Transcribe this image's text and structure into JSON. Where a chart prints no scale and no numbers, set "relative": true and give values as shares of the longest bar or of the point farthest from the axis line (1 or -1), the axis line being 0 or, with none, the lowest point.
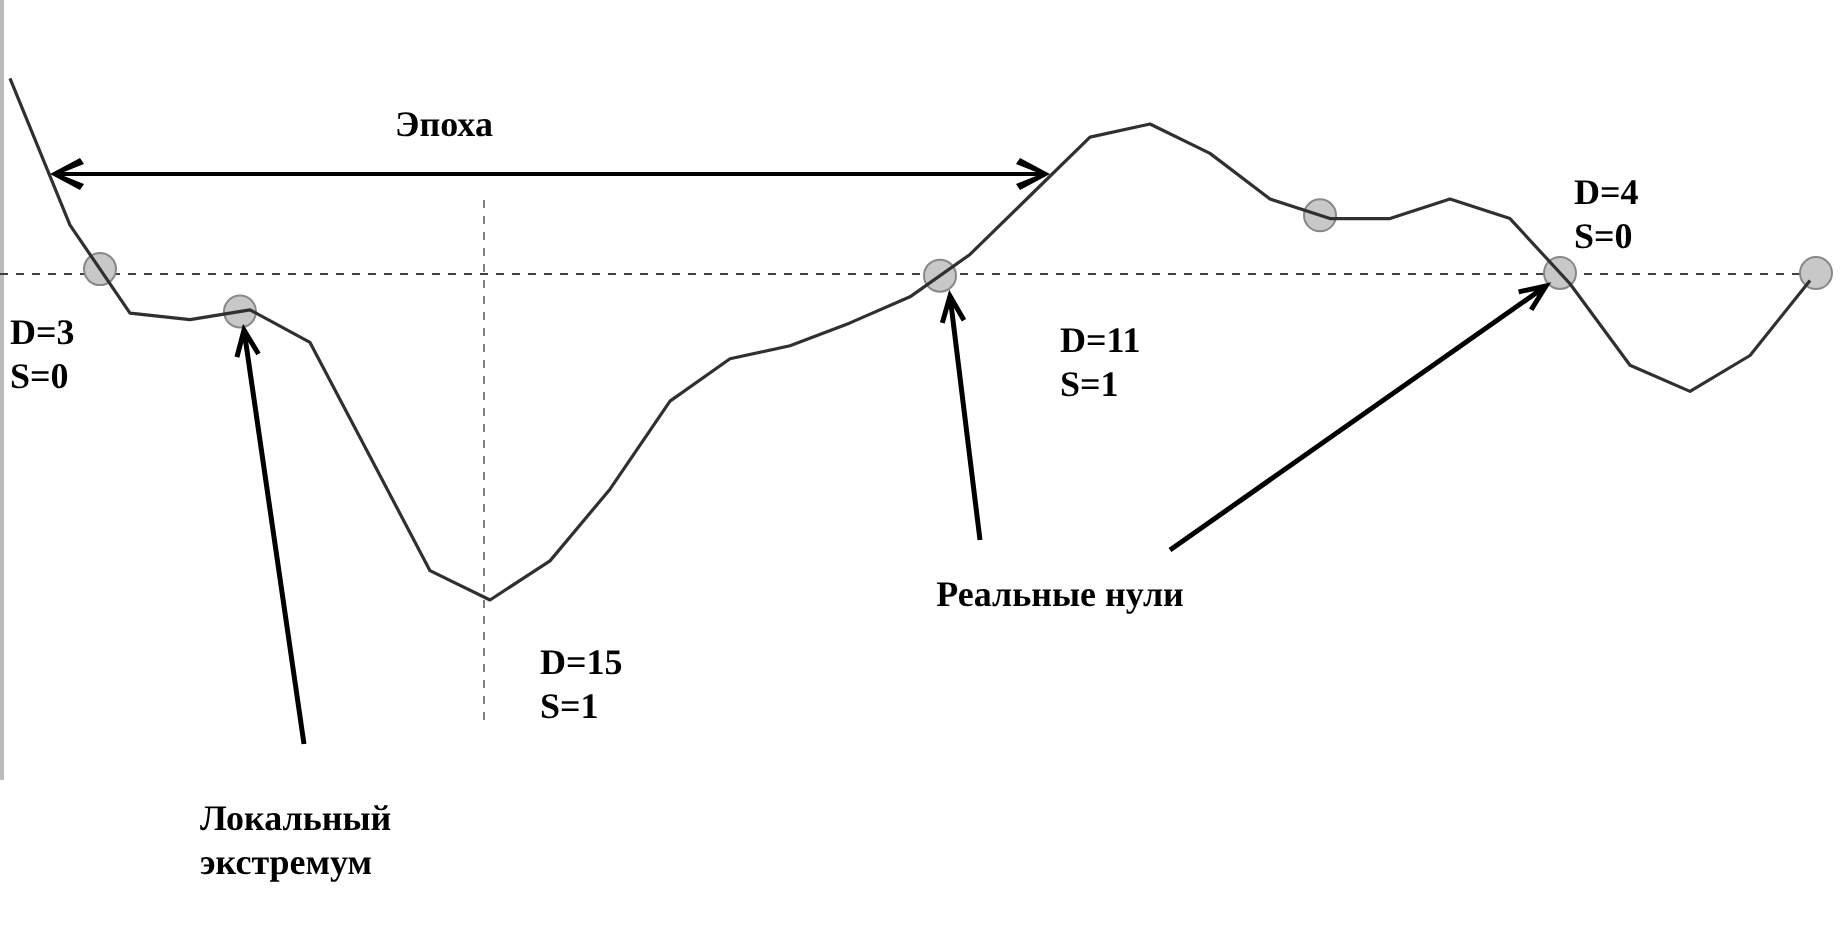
{
  "chart_data": {
    "type": "line",
    "relative": true,
    "tick_labels": false,
    "categories": [
      null,
      null,
      null,
      null,
      null,
      null,
      null,
      null,
      null,
      null,
      null,
      null,
      null,
      null,
      null,
      null,
      null,
      null,
      null,
      null,
      null,
      null,
      null,
      null,
      null,
      null,
      null,
      null,
      null,
      null,
      null
    ],
    "series": [
      {
        "color": "#303030",
        "values": [
          0.6,
          0.15,
          -0.12,
          -0.14,
          -0.11,
          -0.21,
          -0.56,
          -0.91,
          -1,
          -0.88,
          -0.66,
          -0.39,
          -0.26,
          -0.22,
          -0.15,
          -0.07,
          0.06,
          0.24,
          0.42,
          0.46,
          0.37,
          0.23,
          0.17,
          0.17,
          0.23,
          0.17,
          -0.03,
          -0.28,
          -0.36,
          -0.25,
          -0.02
        ]
      }
    ],
    "ref_lines": [
      {
        "axis": "y",
        "value": 0,
        "line_style": "dashed",
        "color": "#404040"
      }
    ],
    "annotations": [
      "Эпоха",
      "D=3\nS=0",
      "D=15\nS=1",
      "D=11\nS=1",
      "D=4\nS=0",
      "Реальные нули",
      "Локальный\nэкстремум"
    ]
  }
}
